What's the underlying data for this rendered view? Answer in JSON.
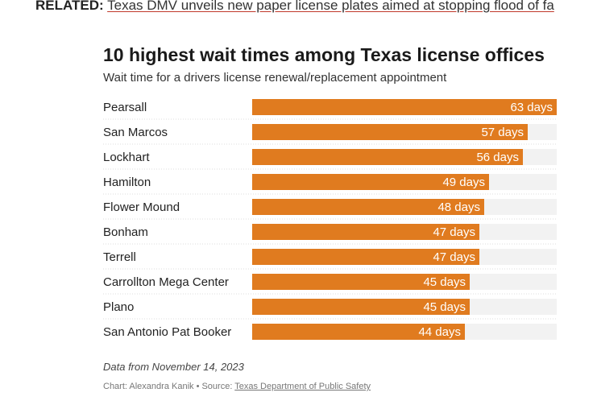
{
  "related": {
    "label": "RELATED:",
    "link_text": "Texas DMV unveils new paper license plates aimed at stopping flood of fa"
  },
  "chart_data": {
    "type": "bar",
    "orientation": "horizontal",
    "title": "10 highest wait times among Texas license offices",
    "subtitle": "Wait time for a drivers license renewal/replacement appointment",
    "categories": [
      "Pearsall",
      "San Marcos",
      "Lockhart",
      "Hamilton",
      "Flower Mound",
      "Bonham",
      "Terrell",
      "Carrollton Mega Center",
      "Plano",
      "San Antonio Pat Booker"
    ],
    "values": [
      63,
      57,
      56,
      49,
      48,
      47,
      47,
      45,
      45,
      44
    ],
    "value_labels": [
      "63 days",
      "57 days",
      "56 days",
      "49 days",
      "48 days",
      "47 days",
      "47 days",
      "45 days",
      "45 days",
      "44 days"
    ],
    "xlim": [
      0,
      63
    ],
    "grid": false,
    "legend": "none",
    "colors": {
      "bar": "#e07b1f",
      "track": "#f2f2f2",
      "divider": "#dddddd"
    }
  },
  "footer": {
    "note": "Data from November 14, 2023",
    "credit_prefix": "Chart: Alexandra Kanik • Source: ",
    "source_link": "Texas Department of Public Safety"
  }
}
